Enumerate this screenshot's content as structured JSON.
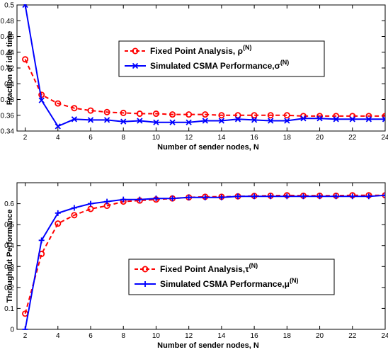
{
  "chart_data": [
    {
      "type": "line",
      "title": "",
      "xlabel": "Number of sender nodes, N",
      "ylabel": "Fraction of idle time",
      "xlim": [
        1.5,
        24
      ],
      "ylim": [
        0.34,
        0.5
      ],
      "xticks": [
        2,
        4,
        6,
        8,
        10,
        12,
        14,
        16,
        18,
        20,
        22,
        24
      ],
      "yticks": [
        0.34,
        0.36,
        0.38,
        0.4,
        0.42,
        0.44,
        0.46,
        0.48,
        0.5
      ],
      "ytick_labels": [
        "0.34",
        "0.36",
        "0.38",
        "0.4",
        "0.42",
        "0.44",
        "0.46",
        "0.48",
        "0.5"
      ],
      "grid": false,
      "legend_position": "center",
      "x": [
        2,
        3,
        4,
        5,
        6,
        7,
        8,
        9,
        10,
        11,
        12,
        13,
        14,
        15,
        16,
        17,
        18,
        19,
        20,
        21,
        22,
        23,
        24
      ],
      "series": [
        {
          "name": "Fixed Point Analysis, ρ",
          "sup": "(N)",
          "color": "#ff0000",
          "dash": true,
          "marker": "circle",
          "values": [
            0.431,
            0.386,
            0.375,
            0.369,
            0.366,
            0.364,
            0.363,
            0.362,
            0.362,
            0.361,
            0.361,
            0.361,
            0.36,
            0.36,
            0.36,
            0.36,
            0.36,
            0.359,
            0.359,
            0.359,
            0.359,
            0.359,
            0.359
          ]
        },
        {
          "name": "Simulated CSMA Performance,σ",
          "sup": "(N)",
          "color": "#0000ff",
          "dash": false,
          "marker": "x",
          "values": [
            0.5,
            0.379,
            0.346,
            0.355,
            0.354,
            0.354,
            0.352,
            0.353,
            0.351,
            0.351,
            0.351,
            0.353,
            0.353,
            0.355,
            0.354,
            0.353,
            0.353,
            0.356,
            0.356,
            0.355,
            0.355,
            0.355,
            0.355
          ]
        }
      ]
    },
    {
      "type": "line",
      "title": "",
      "xlabel": "Number of sender nodes, N",
      "ylabel": "Throughput Performance",
      "xlim": [
        1.5,
        24
      ],
      "ylim": [
        0,
        0.7
      ],
      "xticks": [
        2,
        4,
        6,
        8,
        10,
        12,
        14,
        16,
        18,
        20,
        22,
        24
      ],
      "yticks": [
        0,
        0.1,
        0.2,
        0.3,
        0.4,
        0.5,
        0.6
      ],
      "ytick_labels": [
        "0",
        "0.1",
        "0.2",
        "0.3",
        "0.4",
        "0.5",
        "0.6"
      ],
      "grid": false,
      "legend_position": "bottom-center",
      "x": [
        2,
        3,
        4,
        5,
        6,
        7,
        8,
        9,
        10,
        11,
        12,
        13,
        14,
        15,
        16,
        17,
        18,
        19,
        20,
        21,
        22,
        23,
        24
      ],
      "series": [
        {
          "name": "Fixed Point Analysis,τ",
          "sup": "(N)",
          "color": "#ff0000",
          "dash": true,
          "marker": "circle",
          "values": [
            0.075,
            0.36,
            0.505,
            0.545,
            0.575,
            0.59,
            0.61,
            0.615,
            0.62,
            0.625,
            0.63,
            0.633,
            0.633,
            0.635,
            0.637,
            0.638,
            0.64,
            0.638,
            0.638,
            0.638,
            0.64,
            0.64,
            0.64
          ]
        },
        {
          "name": "Simulated CSMA Performance,μ",
          "sup": "(N)",
          "color": "#0000ff",
          "dash": false,
          "marker": "plus",
          "values": [
            0.0,
            0.425,
            0.555,
            0.58,
            0.6,
            0.61,
            0.62,
            0.62,
            0.625,
            0.625,
            0.63,
            0.63,
            0.63,
            0.635,
            0.635,
            0.635,
            0.635,
            0.635,
            0.635,
            0.635,
            0.635,
            0.635,
            0.64
          ]
        }
      ]
    }
  ]
}
